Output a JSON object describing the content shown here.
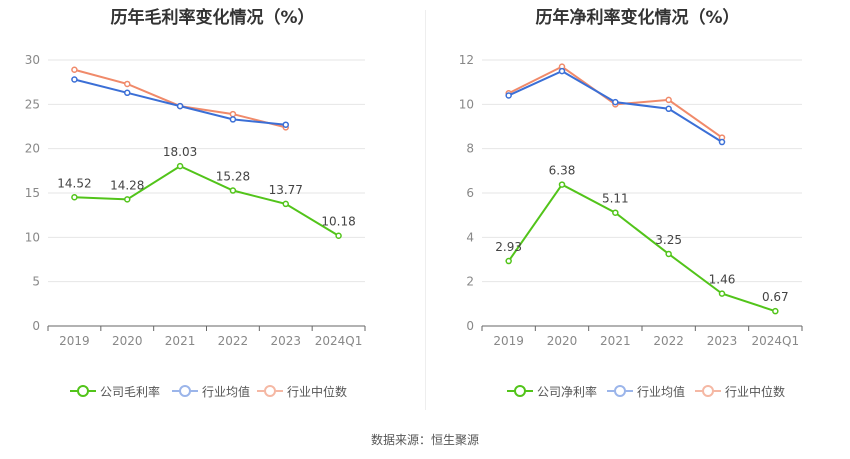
{
  "source_text": "数据来源：恒生聚源",
  "colors": {
    "company": "#52c41a",
    "industry_avg": "#3b6fd6",
    "industry_median": "#f08a6a"
  },
  "chart_data": [
    {
      "type": "line",
      "title": "历年毛利率变化情况（%）",
      "categories": [
        "2019",
        "2020",
        "2021",
        "2022",
        "2023",
        "2024Q1"
      ],
      "ylim": [
        0,
        30
      ],
      "yticks": [
        "0",
        "5",
        "10",
        "15",
        "20",
        "25",
        "30"
      ],
      "grid": true,
      "legend_position": "bottom",
      "series": [
        {
          "name": "公司毛利率",
          "key": "company",
          "values": [
            14.52,
            14.28,
            18.03,
            15.28,
            13.77,
            10.18
          ],
          "labels": [
            "14.52",
            "14.28",
            "18.03",
            "15.28",
            "13.77",
            "10.18"
          ]
        },
        {
          "name": "行业均值",
          "key": "industry_avg",
          "values": [
            27.8,
            26.3,
            24.8,
            23.3,
            22.7,
            null
          ]
        },
        {
          "name": "行业中位数",
          "key": "industry_median",
          "values": [
            28.9,
            27.3,
            24.8,
            23.9,
            22.4,
            null
          ]
        }
      ]
    },
    {
      "type": "line",
      "title": "历年净利率变化情况（%）",
      "categories": [
        "2019",
        "2020",
        "2021",
        "2022",
        "2023",
        "2024Q1"
      ],
      "ylim": [
        0,
        12
      ],
      "yticks": [
        "0",
        "2",
        "4",
        "6",
        "8",
        "10",
        "12"
      ],
      "grid": true,
      "legend_position": "bottom",
      "series": [
        {
          "name": "公司净利率",
          "key": "company",
          "values": [
            2.93,
            6.38,
            5.11,
            3.25,
            1.46,
            0.67
          ],
          "labels": [
            "2.93",
            "6.38",
            "5.11",
            "3.25",
            "1.46",
            "0.67"
          ]
        },
        {
          "name": "行业均值",
          "key": "industry_avg",
          "values": [
            10.4,
            11.5,
            10.1,
            9.8,
            8.3,
            null
          ]
        },
        {
          "name": "行业中位数",
          "key": "industry_median",
          "values": [
            10.5,
            11.7,
            10.0,
            10.2,
            8.5,
            null
          ]
        }
      ]
    }
  ]
}
